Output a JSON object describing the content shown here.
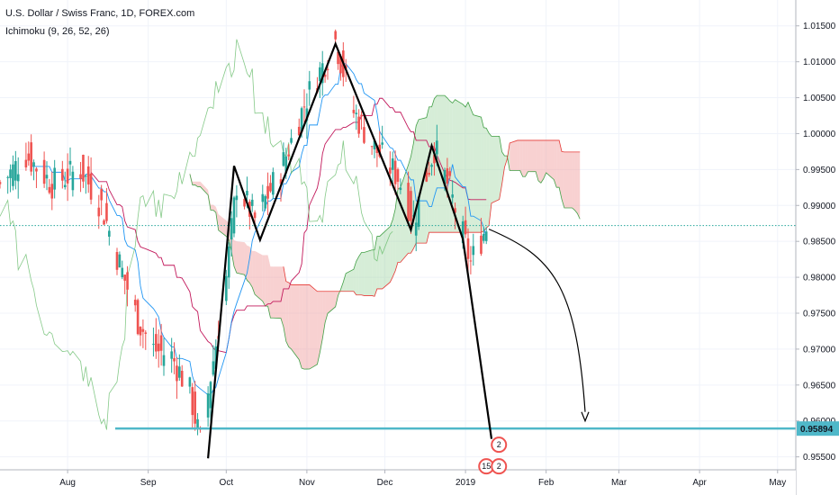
{
  "header": {
    "title": "U.S. Dollar / Swiss Franc, 1D, FOREX.com",
    "indicator": "Ichimoku (9, 26, 52, 26)"
  },
  "colors": {
    "bull": "#26a69a",
    "bear": "#ef5350",
    "tenkan": "#2196f3",
    "kijun": "#c2185b",
    "chikou": "#66bb6a",
    "cloud_bull": "#a5d6a7",
    "cloud_bear": "#ef9a9a",
    "target_line": "#4fb8c9",
    "last_price": "#26a69a",
    "grid": "#f0f3fa",
    "drawing": "#000000"
  },
  "chart_data": {
    "type": "line",
    "x_axis": {
      "labels": [
        "Aug",
        "Sep",
        "Oct",
        "Nov",
        "Dec",
        "2019",
        "Feb",
        "Mar",
        "Apr",
        "May"
      ],
      "start": "2018-07-06",
      "end": "2019-05-08"
    },
    "y_axis": {
      "ticks": [
        "1.01500",
        "1.01000",
        "1.00500",
        "1.00000",
        "0.99500",
        "0.99000",
        "0.98500",
        "0.98000",
        "0.97500",
        "0.97000",
        "0.96500",
        "0.96000",
        "0.95500"
      ],
      "range": [
        0.9532,
        1.0186
      ]
    },
    "price_path": [
      [
        "2018-07-06",
        0.993
      ],
      [
        "2018-07-16",
        0.997
      ],
      [
        "2018-07-26",
        0.993
      ],
      [
        "2018-08-06",
        0.995
      ],
      [
        "2018-08-14",
        0.99
      ],
      [
        "2018-08-20",
        0.983
      ],
      [
        "2018-08-28",
        0.974
      ],
      [
        "2018-09-03",
        0.97
      ],
      [
        "2018-09-10",
        0.969
      ],
      [
        "2018-09-17",
        0.964
      ],
      [
        "2018-09-21",
        0.957
      ],
      [
        "2018-10-01",
        0.98
      ],
      [
        "2018-10-05",
        0.993
      ],
      [
        "2018-10-12",
        0.988
      ],
      [
        "2018-10-22",
        0.995
      ],
      [
        "2018-11-01",
        1.005
      ],
      [
        "2018-11-12",
        1.013
      ],
      [
        "2018-11-19",
        1.003
      ],
      [
        "2018-11-27",
        0.998
      ],
      [
        "2018-12-06",
        0.994
      ],
      [
        "2018-12-12",
        0.988
      ],
      [
        "2018-12-20",
        0.998
      ],
      [
        "2018-12-26",
        0.992
      ],
      [
        "2019-01-03",
        0.982
      ],
      [
        "2019-01-09",
        0.987
      ]
    ],
    "target_price": "0.95894",
    "last_price": 0.9872,
    "pattern_points": [
      [
        "2018-09-24",
        0.9548
      ],
      [
        "2018-10-04",
        0.9955
      ],
      [
        "2018-10-14",
        0.9852
      ],
      [
        "2018-11-12",
        1.0125
      ],
      [
        "2018-12-11",
        0.9866
      ],
      [
        "2018-12-19",
        0.9983
      ],
      [
        "2018-12-31",
        0.9853
      ],
      [
        "2019-01-11",
        0.9575
      ]
    ],
    "projection_arrow": {
      "from": [
        "2019-01-10",
        0.9867
      ],
      "to": [
        "2019-02-16",
        0.96
      ]
    },
    "events": [
      "2",
      "15",
      "2"
    ]
  }
}
